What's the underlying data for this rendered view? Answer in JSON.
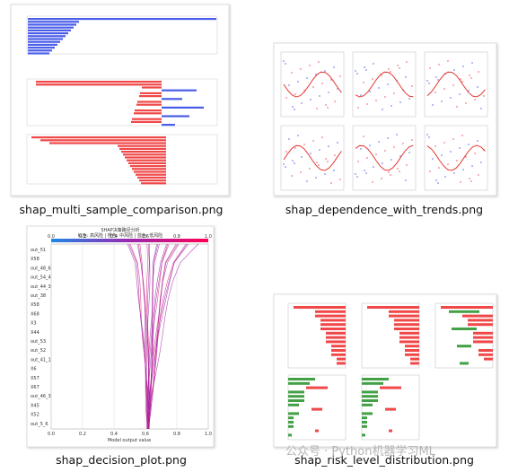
{
  "files": [
    {
      "name": "shap_multi_sample_comparison.png"
    },
    {
      "name": "shap_dependence_with_trends.png"
    },
    {
      "name": "shap_decision_plot.png"
    },
    {
      "name": "shap_risk_level_distribution.png"
    }
  ],
  "decision_plot": {
    "title": "SHAP决策路径分析",
    "legend": "红色: 高风险 | 橙色: 中风险 | 蓝色: 低风险",
    "features": [
      "out_51",
      "X58",
      "out_48_6",
      "out_54_4",
      "out_44_3",
      "out_38",
      "X58",
      "X68",
      "X3",
      "X44",
      "out_53",
      "out_52",
      "out_41_1",
      "X6",
      "X57",
      "X67",
      "out_46_3",
      "X45",
      "X52",
      "out_5_6"
    ],
    "ticks": [
      "0.0",
      "0.2",
      "0.4",
      "0.6",
      "0.8",
      "1.0"
    ],
    "xlabel": "Model output value"
  },
  "watermark": "公众号 · Python机器学习ML"
}
